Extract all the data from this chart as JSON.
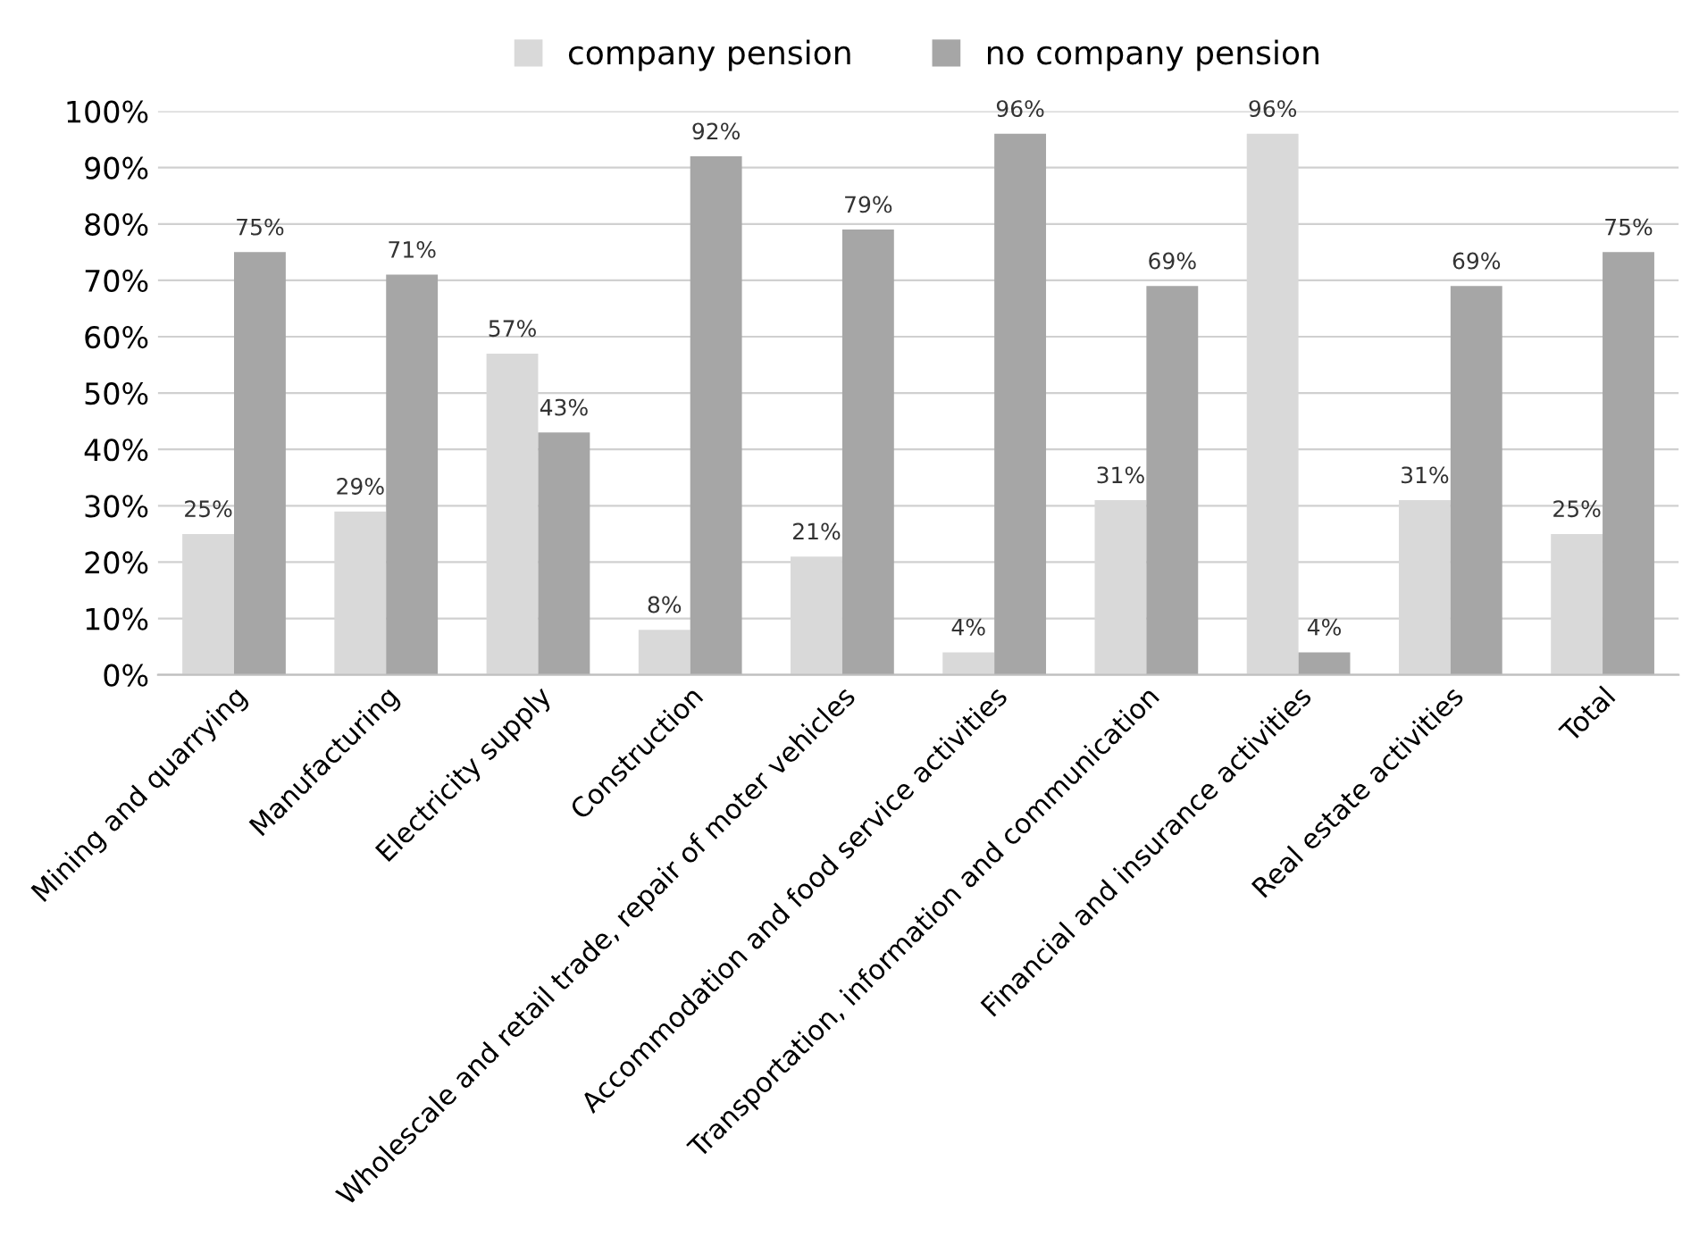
{
  "chart_data": {
    "type": "bar",
    "categories": [
      "Mining and quarrying",
      "Manufacturing",
      "Electricity supply",
      "Construction",
      "Wholescale and retail trade, repair of moter vehicles",
      "Accommodation and food service activities",
      "Transportation, information and communication",
      "Financial and insurance activities",
      "Real estate activities",
      "Total"
    ],
    "series": [
      {
        "name": "company pension",
        "color": "#d9d9d9",
        "values": [
          25,
          29,
          57,
          8,
          21,
          4,
          31,
          96,
          31,
          25
        ],
        "value_labels": [
          "25%",
          "29%",
          "57%",
          "8%",
          "21%",
          "4%",
          "31%",
          "96%",
          "31%",
          "25%"
        ]
      },
      {
        "name": "no company pension",
        "color": "#a6a6a6",
        "values": [
          75,
          71,
          43,
          92,
          79,
          96,
          69,
          4,
          69,
          75
        ],
        "value_labels": [
          "75%",
          "71%",
          "43%",
          "92%",
          "79%",
          "96%",
          "69%",
          "4%",
          "69%",
          "75%"
        ]
      }
    ],
    "ylim": [
      0,
      100
    ],
    "yticks": [
      {
        "value": 0,
        "label": "0%"
      },
      {
        "value": 10,
        "label": "10%"
      },
      {
        "value": 20,
        "label": "20%"
      },
      {
        "value": 30,
        "label": "30%"
      },
      {
        "value": 40,
        "label": "40%"
      },
      {
        "value": 50,
        "label": "50%"
      },
      {
        "value": 60,
        "label": "60%"
      },
      {
        "value": 70,
        "label": "70%"
      },
      {
        "value": 80,
        "label": "80%"
      },
      {
        "value": 90,
        "label": "90%"
      },
      {
        "value": 100,
        "label": "100%"
      }
    ],
    "grid": "y",
    "legend": "top"
  }
}
